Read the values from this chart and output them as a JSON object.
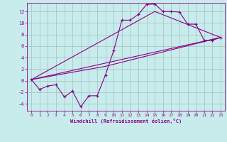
{
  "xlabel": "Windchill (Refroidissement éolien,°C)",
  "bg_color": "#c8ecec",
  "line_color": "#880088",
  "grid_color": "#a0c0c0",
  "xlim": [
    -0.5,
    23.5
  ],
  "ylim": [
    -5.2,
    13.5
  ],
  "yticks": [
    -4,
    -2,
    0,
    2,
    4,
    6,
    8,
    10,
    12
  ],
  "xticks": [
    0,
    1,
    2,
    3,
    4,
    5,
    6,
    7,
    8,
    9,
    10,
    11,
    12,
    13,
    14,
    15,
    16,
    17,
    18,
    19,
    20,
    21,
    22,
    23
  ],
  "lines": [
    {
      "x": [
        0,
        1,
        2,
        3,
        4,
        5,
        6,
        7,
        8,
        9,
        10,
        11,
        12,
        13,
        14,
        15,
        16,
        17,
        18,
        19,
        20,
        21,
        22,
        23
      ],
      "y": [
        0.2,
        -1.5,
        -0.9,
        -0.7,
        -2.8,
        -1.8,
        -4.5,
        -2.6,
        -2.6,
        1.0,
        5.2,
        10.5,
        10.5,
        11.5,
        13.2,
        13.3,
        12.0,
        12.0,
        11.9,
        9.8,
        9.8,
        7.0,
        7.0,
        7.5
      ],
      "has_markers": true
    },
    {
      "x": [
        0,
        23
      ],
      "y": [
        0.2,
        7.5
      ],
      "has_markers": false
    },
    {
      "x": [
        0,
        9,
        23
      ],
      "y": [
        0.2,
        2.5,
        7.5
      ],
      "has_markers": false
    },
    {
      "x": [
        0,
        15,
        23
      ],
      "y": [
        0.2,
        12.0,
        7.5
      ],
      "has_markers": false
    }
  ]
}
